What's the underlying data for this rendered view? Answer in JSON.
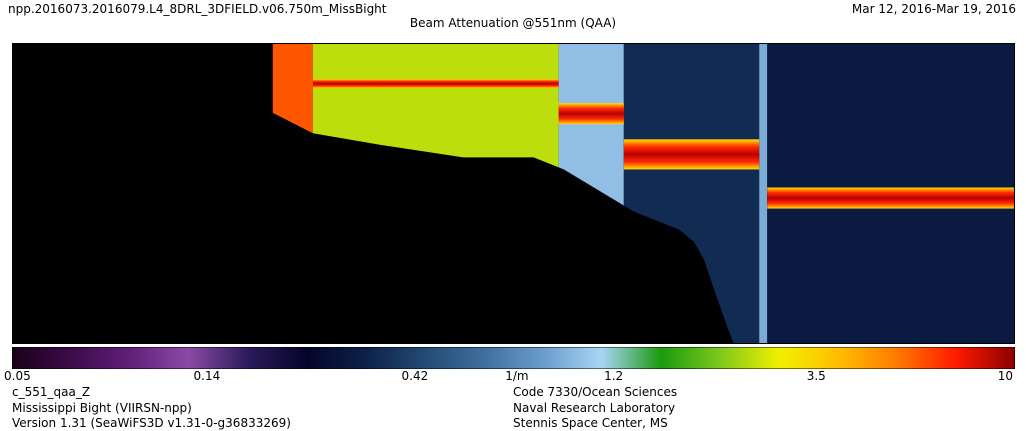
{
  "header": {
    "file_name": "npp.2016073.2016079.L4_8DRL_3DFIELD.v06.750m_MissBight",
    "date_range": "Mar 12, 2016-Mar 19, 2016"
  },
  "chart_data": {
    "type": "heatmap",
    "title": "Beam Attenuation @551nm (QAA)",
    "background": "#000000",
    "colorbar": {
      "scale": "log",
      "range": [
        0.05,
        10
      ],
      "unit": "1/m",
      "tick_labels": [
        {
          "value": 0.05,
          "label": "0.05"
        },
        {
          "value": 0.14,
          "label": "0.14"
        },
        {
          "value": 0.42,
          "label": "0.42"
        },
        {
          "value": 0.72,
          "label": "1/m"
        },
        {
          "value": 1.2,
          "label": "1.2"
        },
        {
          "value": 3.5,
          "label": "3.5"
        },
        {
          "value": 10,
          "label": "10"
        }
      ],
      "colors": [
        "#1a0018",
        "#3c0b4a",
        "#60207a",
        "#8a4aa5",
        "#2a1b5a",
        "#05052a",
        "#0d2148",
        "#234a75",
        "#3f6f9c",
        "#6a9ccc",
        "#a8d4f5",
        "#1a9a10",
        "#7ec81c",
        "#f0f000",
        "#ffbe00",
        "#ff7a00",
        "#ff1a00",
        "#8a0000"
      ]
    },
    "profiles": [
      {
        "x": [
          0.0,
          0.02,
          0.1,
          0.2,
          0.3,
          0.37,
          0.45,
          0.52,
          0.55,
          0.6,
          0.62,
          0.665,
          0.68,
          0.69,
          0.7,
          0.715,
          0.72,
          1.0
        ],
        "bottom_depth": [
          0.0,
          0.0,
          0.03,
          0.13,
          0.3,
          0.34,
          0.38,
          0.38,
          0.42,
          0.52,
          0.56,
          0.62,
          0.66,
          0.72,
          0.82,
          0.96,
          1.0,
          1.0
        ]
      }
    ],
    "segments": [
      {
        "x": [
          0.26,
          0.3
        ],
        "value": 6.0
      },
      {
        "x": [
          0.3,
          0.545
        ],
        "value": 2.5,
        "layer_value": 6.0,
        "layer_depth": [
          0.12,
          0.15
        ]
      },
      {
        "x": [
          0.545,
          0.61
        ],
        "value": 1.0,
        "layer_value": 7.0,
        "layer_depth": [
          0.2,
          0.27
        ]
      },
      {
        "x": [
          0.61,
          0.745
        ],
        "value": 0.35,
        "layer_value": 8.0,
        "layer_depth": [
          0.32,
          0.42
        ]
      },
      {
        "x": [
          0.745,
          0.753
        ],
        "value": 0.9
      },
      {
        "x": [
          0.753,
          1.0
        ],
        "value": 0.3,
        "layer_value": 8.0,
        "layer_depth": [
          0.48,
          0.55
        ]
      }
    ]
  },
  "footer": {
    "left": [
      "c_551_qaa_Z",
      "Mississippi Bight (VIIRSN-npp)",
      "Version 1.31 (SeaWiFS3D v1.31-0-g36833269)"
    ],
    "right": [
      "Code 7330/Ocean Sciences",
      "Naval Research Laboratory",
      "Stennis Space Center, MS"
    ]
  }
}
